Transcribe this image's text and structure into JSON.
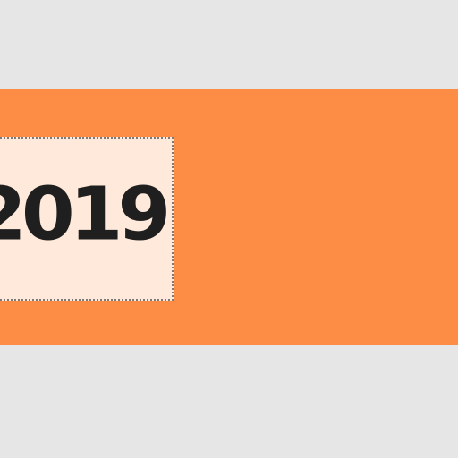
{
  "banner": {
    "year_text": "2019"
  },
  "colors": {
    "page_background": "#e6e6e6",
    "banner_background": "#fd8d44",
    "year_box_background": "#ffe9da",
    "year_box_border": "#7a7a7a",
    "year_text": "#1f1f1f"
  }
}
